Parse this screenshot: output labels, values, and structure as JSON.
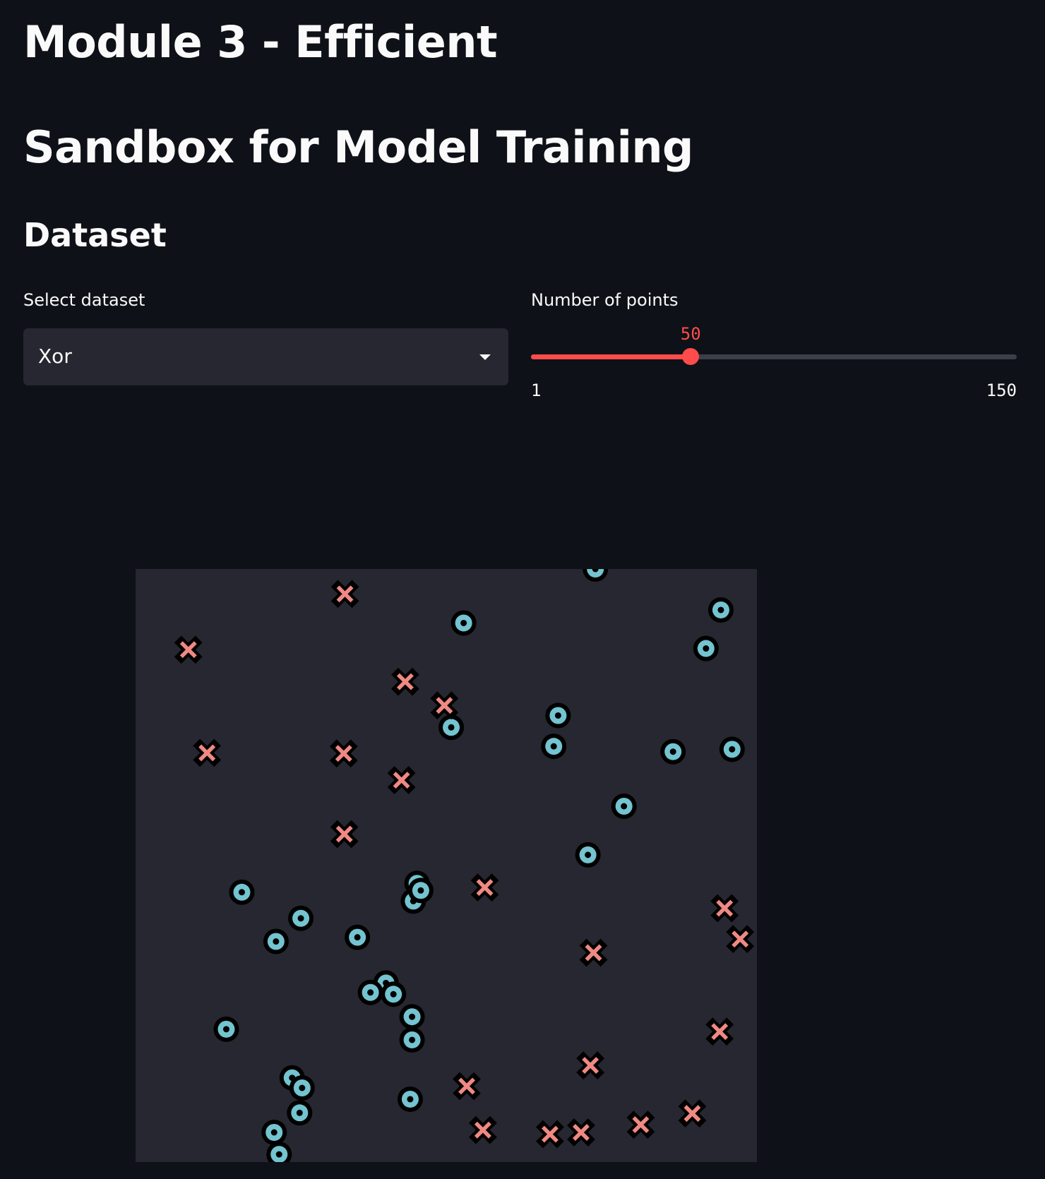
{
  "page": {
    "title_line1": "Module 3 - Efficient",
    "title_line2": "Sandbox for Model Training",
    "section_heading": "Dataset"
  },
  "dataset_select": {
    "label": "Select dataset",
    "selected": "Xor"
  },
  "points_slider": {
    "label": "Number of points",
    "value": 50,
    "value_text": "50",
    "min": 1,
    "max": 150,
    "min_text": "1",
    "max_text": "150"
  },
  "colors": {
    "background": "#0e1117",
    "widget_background": "#262730",
    "accent": "#ff4b4b",
    "class_0": "#74c3d0",
    "class_1": "#f08983",
    "marker_outline": "#000000"
  },
  "chart_data": {
    "type": "scatter",
    "title": "",
    "xlabel": "",
    "ylabel": "",
    "xlim": [
      0,
      1
    ],
    "ylim": [
      0,
      1
    ],
    "grid": false,
    "legend": "none",
    "axes_visible": false,
    "series": [
      {
        "marker": "circle",
        "color": "#74c3d0",
        "points": [
          {
            "x": 0.74,
            "y": 1.0
          },
          {
            "x": 0.528,
            "y": 0.909
          },
          {
            "x": 0.942,
            "y": 0.931
          },
          {
            "x": 0.918,
            "y": 0.866
          },
          {
            "x": 0.68,
            "y": 0.753
          },
          {
            "x": 0.508,
            "y": 0.733
          },
          {
            "x": 0.673,
            "y": 0.701
          },
          {
            "x": 0.865,
            "y": 0.692
          },
          {
            "x": 0.96,
            "y": 0.696
          },
          {
            "x": 0.786,
            "y": 0.6
          },
          {
            "x": 0.728,
            "y": 0.518
          },
          {
            "x": 0.453,
            "y": 0.47
          },
          {
            "x": 0.447,
            "y": 0.44
          },
          {
            "x": 0.171,
            "y": 0.455
          },
          {
            "x": 0.266,
            "y": 0.411
          },
          {
            "x": 0.226,
            "y": 0.372
          },
          {
            "x": 0.357,
            "y": 0.379
          },
          {
            "x": 0.403,
            "y": 0.302
          },
          {
            "x": 0.378,
            "y": 0.286
          },
          {
            "x": 0.415,
            "y": 0.283
          },
          {
            "x": 0.445,
            "y": 0.245
          },
          {
            "x": 0.445,
            "y": 0.206
          },
          {
            "x": 0.146,
            "y": 0.224
          },
          {
            "x": 0.252,
            "y": 0.142
          },
          {
            "x": 0.268,
            "y": 0.125
          },
          {
            "x": 0.442,
            "y": 0.106
          },
          {
            "x": 0.264,
            "y": 0.083
          },
          {
            "x": 0.223,
            "y": 0.05
          },
          {
            "x": 0.231,
            "y": 0.013
          },
          {
            "x": 0.459,
            "y": 0.458
          }
        ]
      },
      {
        "marker": "x",
        "color": "#f08983",
        "points": [
          {
            "x": 0.337,
            "y": 0.958
          },
          {
            "x": 0.085,
            "y": 0.864
          },
          {
            "x": 0.434,
            "y": 0.81
          },
          {
            "x": 0.497,
            "y": 0.77
          },
          {
            "x": 0.115,
            "y": 0.69
          },
          {
            "x": 0.335,
            "y": 0.689
          },
          {
            "x": 0.428,
            "y": 0.644
          },
          {
            "x": 0.336,
            "y": 0.553
          },
          {
            "x": 0.562,
            "y": 0.463
          },
          {
            "x": 0.948,
            "y": 0.428
          },
          {
            "x": 0.973,
            "y": 0.376
          },
          {
            "x": 0.737,
            "y": 0.353
          },
          {
            "x": 0.94,
            "y": 0.22
          },
          {
            "x": 0.732,
            "y": 0.163
          },
          {
            "x": 0.533,
            "y": 0.128
          },
          {
            "x": 0.559,
            "y": 0.054
          },
          {
            "x": 0.667,
            "y": 0.047
          },
          {
            "x": 0.717,
            "y": 0.05
          },
          {
            "x": 0.813,
            "y": 0.063
          },
          {
            "x": 0.896,
            "y": 0.082
          }
        ]
      }
    ]
  }
}
